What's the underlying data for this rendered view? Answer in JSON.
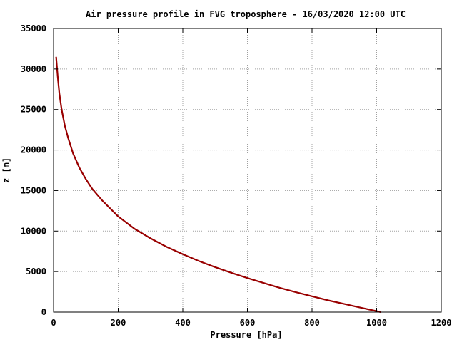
{
  "chart_data": {
    "type": "line",
    "title": "Air pressure profile in FVG troposphere - 16/03/2020 12:00 UTC",
    "xlabel": "Pressure [hPa]",
    "ylabel": "z [m]",
    "xlim": [
      0,
      1200
    ],
    "ylim": [
      0,
      35000
    ],
    "x_ticks": [
      0,
      200,
      400,
      600,
      800,
      1000,
      1200
    ],
    "y_ticks": [
      0,
      5000,
      10000,
      15000,
      20000,
      25000,
      30000,
      35000
    ],
    "grid": true,
    "legend": "none",
    "series": [
      {
        "color": "#990000",
        "x": [
          1013,
          950,
          900,
          850,
          800,
          750,
          700,
          650,
          600,
          550,
          500,
          450,
          400,
          350,
          300,
          250,
          200,
          150,
          120,
          100,
          80,
          60,
          45,
          35,
          25,
          18,
          13,
          10,
          8
        ],
        "y": [
          0,
          550,
          1000,
          1450,
          1950,
          2450,
          3000,
          3600,
          4200,
          4850,
          5550,
          6300,
          7150,
          8050,
          9100,
          10300,
          11800,
          13800,
          15200,
          16400,
          17800,
          19600,
          21500,
          23000,
          25000,
          27000,
          29000,
          30500,
          31500
        ]
      }
    ]
  }
}
